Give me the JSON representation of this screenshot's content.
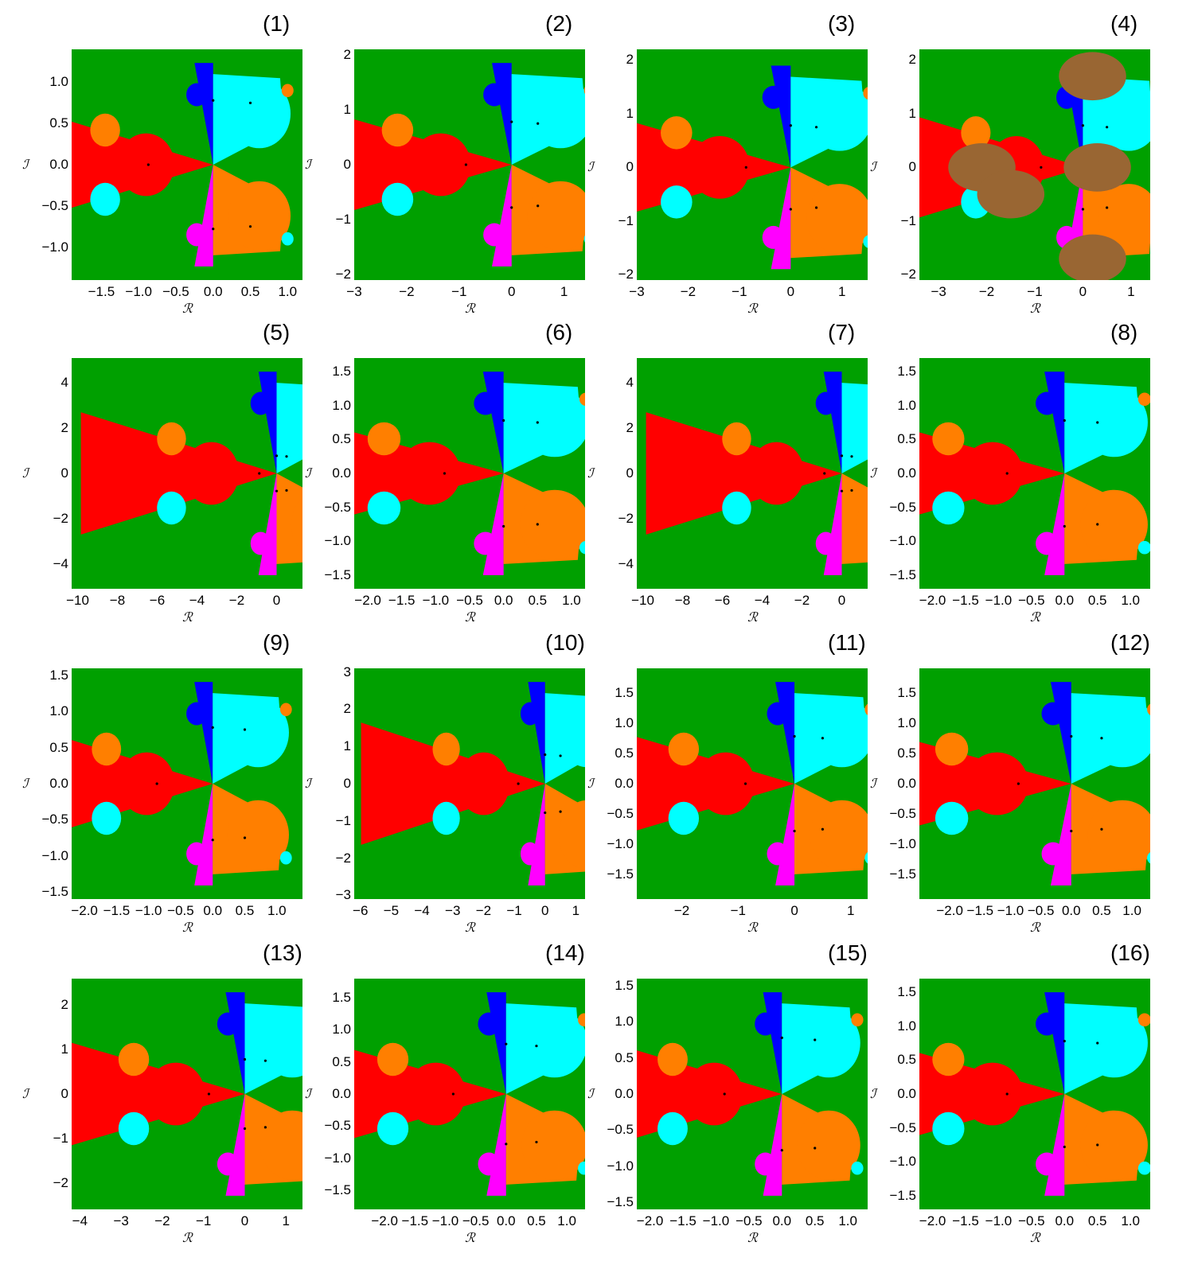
{
  "colors": {
    "background": "#00a000",
    "red": "#ff0000",
    "orange": "#ff7f00",
    "cyan": "#00ffff",
    "blue": "#0000ff",
    "magenta": "#ff00ff",
    "brown": "#996633",
    "root": "#000000"
  },
  "axis_labels": {
    "x": "ℛ",
    "y": "ℐ"
  },
  "roots": [
    [
      -0.87,
      0.0
    ],
    [
      0.0,
      0.78
    ],
    [
      0.0,
      -0.78
    ],
    [
      0.5,
      0.75
    ],
    [
      0.5,
      -0.75
    ]
  ],
  "panels": [
    {
      "title": "(1)",
      "xlim": [
        -1.9,
        1.2
      ],
      "ylim": [
        -1.4,
        1.4
      ],
      "xticks": [
        "−1.5",
        "−1.0",
        "−0.5",
        "0.0",
        "0.5",
        "1.0"
      ],
      "xtick_values": [
        -1.5,
        -1.0,
        -0.5,
        0.0,
        0.5,
        1.0
      ],
      "yticks": [
        "1.0",
        "0.5",
        "0.0",
        "−0.5",
        "−1.0"
      ],
      "ytick_values": [
        1.0,
        0.5,
        0.0,
        -0.5,
        -1.0
      ]
    },
    {
      "title": "(2)",
      "xlim": [
        -3.0,
        1.4
      ],
      "ylim": [
        -2.1,
        2.1
      ],
      "xticks": [
        "−3",
        "−2",
        "−1",
        "0",
        "1"
      ],
      "xtick_values": [
        -3,
        -2,
        -1,
        0,
        1
      ],
      "yticks": [
        "2",
        "1",
        "0",
        "−1",
        "−2"
      ],
      "ytick_values": [
        2,
        1,
        0,
        -1,
        -2
      ]
    },
    {
      "title": "(3)",
      "xlim": [
        -3.0,
        1.5
      ],
      "ylim": [
        -2.1,
        2.2
      ],
      "xticks": [
        "−3",
        "−2",
        "−1",
        "0",
        "1"
      ],
      "xtick_values": [
        -3,
        -2,
        -1,
        0,
        1
      ],
      "yticks": [
        "2",
        "1",
        "0",
        "−1",
        "−2"
      ],
      "ytick_values": [
        2,
        1,
        0,
        -1,
        -2
      ]
    },
    {
      "title": "(4)",
      "xlim": [
        -3.4,
        1.4
      ],
      "ylim": [
        -2.1,
        2.2
      ],
      "xticks": [
        "−3",
        "−2",
        "−1",
        "0",
        "1"
      ],
      "xtick_values": [
        -3,
        -2,
        -1,
        0,
        1
      ],
      "yticks": [
        "2",
        "1",
        "0",
        "−1",
        "−2"
      ],
      "ytick_values": [
        2,
        1,
        0,
        -1,
        -2
      ]
    },
    {
      "title": "(5)",
      "xlim": [
        -10.3,
        1.3
      ],
      "ylim": [
        -5.1,
        5.1
      ],
      "xticks": [
        "−10",
        "−8",
        "−6",
        "−4",
        "−2",
        "0"
      ],
      "xtick_values": [
        -10,
        -8,
        -6,
        -4,
        -2,
        0
      ],
      "yticks": [
        "4",
        "2",
        "0",
        "−2",
        "−4"
      ],
      "ytick_values": [
        4,
        2,
        0,
        -2,
        -4
      ]
    },
    {
      "title": "(6)",
      "xlim": [
        -2.2,
        1.2
      ],
      "ylim": [
        -1.7,
        1.7
      ],
      "xticks": [
        "−2.0",
        "−1.5",
        "−1.0",
        "−0.5",
        "0.0",
        "0.5",
        "1.0"
      ],
      "xtick_values": [
        -2.0,
        -1.5,
        -1.0,
        -0.5,
        0.0,
        0.5,
        1.0
      ],
      "yticks": [
        "1.5",
        "1.0",
        "0.5",
        "0.0",
        "−0.5",
        "−1.0",
        "−1.5"
      ],
      "ytick_values": [
        1.5,
        1.0,
        0.5,
        0.0,
        -0.5,
        -1.0,
        -1.5
      ]
    },
    {
      "title": "(7)",
      "xlim": [
        -10.3,
        1.3
      ],
      "ylim": [
        -5.1,
        5.1
      ],
      "xticks": [
        "−10",
        "−8",
        "−6",
        "−4",
        "−2",
        "0"
      ],
      "xtick_values": [
        -10,
        -8,
        -6,
        -4,
        -2,
        0
      ],
      "yticks": [
        "4",
        "2",
        "0",
        "−2",
        "−4"
      ],
      "ytick_values": [
        4,
        2,
        0,
        -2,
        -4
      ]
    },
    {
      "title": "(8)",
      "xlim": [
        -2.2,
        1.3
      ],
      "ylim": [
        -1.7,
        1.7
      ],
      "xticks": [
        "−2.0",
        "−1.5",
        "−1.0",
        "−0.5",
        "0.0",
        "0.5",
        "1.0"
      ],
      "xtick_values": [
        -2.0,
        -1.5,
        -1.0,
        -0.5,
        0.0,
        0.5,
        1.0
      ],
      "yticks": [
        "1.5",
        "1.0",
        "0.5",
        "0.0",
        "−0.5",
        "−1.0",
        "−1.5"
      ],
      "ytick_values": [
        1.5,
        1.0,
        0.5,
        0.0,
        -0.5,
        -1.0,
        -1.5
      ]
    },
    {
      "title": "(9)",
      "xlim": [
        -2.2,
        1.4
      ],
      "ylim": [
        -1.6,
        1.6
      ],
      "xticks": [
        "−2.0",
        "−1.5",
        "−1.0",
        "−0.5",
        "0.0",
        "0.5",
        "1.0"
      ],
      "xtick_values": [
        -2.0,
        -1.5,
        -1.0,
        -0.5,
        0.0,
        0.5,
        1.0
      ],
      "yticks": [
        "1.5",
        "1.0",
        "0.5",
        "0.0",
        "−0.5",
        "−1.0",
        "−1.5"
      ],
      "ytick_values": [
        1.5,
        1.0,
        0.5,
        0.0,
        -0.5,
        -1.0,
        -1.5
      ]
    },
    {
      "title": "(10)",
      "xlim": [
        -6.2,
        1.3
      ],
      "ylim": [
        -3.1,
        3.1
      ],
      "xticks": [
        "−6",
        "−5",
        "−4",
        "−3",
        "−2",
        "−1",
        "0",
        "1"
      ],
      "xtick_values": [
        -6,
        -5,
        -4,
        -3,
        -2,
        -1,
        0,
        1
      ],
      "yticks": [
        "3",
        "2",
        "1",
        "0",
        "−1",
        "−2",
        "−3"
      ],
      "ytick_values": [
        3,
        2,
        1,
        0,
        -1,
        -2,
        -3
      ]
    },
    {
      "title": "(11)",
      "xlim": [
        -2.8,
        1.3
      ],
      "ylim": [
        -1.9,
        1.9
      ],
      "xticks": [
        "−2",
        "−1",
        "0",
        "1"
      ],
      "xtick_values": [
        -2,
        -1,
        0,
        1
      ],
      "yticks": [
        "1.5",
        "1.0",
        "0.5",
        "0.0",
        "−0.5",
        "−1.0",
        "−1.5"
      ],
      "ytick_values": [
        1.5,
        1.0,
        0.5,
        0.0,
        -0.5,
        -1.0,
        -1.5
      ]
    },
    {
      "title": "(12)",
      "xlim": [
        -2.5,
        1.3
      ],
      "ylim": [
        -1.9,
        1.9
      ],
      "xticks": [
        "−2.0",
        "−1.5",
        "−1.0",
        "−0.5",
        "0.0",
        "0.5",
        "1.0"
      ],
      "xtick_values": [
        -2.0,
        -1.5,
        -1.0,
        -0.5,
        0.0,
        0.5,
        1.0
      ],
      "yticks": [
        "1.5",
        "1.0",
        "0.5",
        "0.0",
        "−0.5",
        "−1.0",
        "−1.5"
      ],
      "ytick_values": [
        1.5,
        1.0,
        0.5,
        0.0,
        -0.5,
        -1.0,
        -1.5
      ]
    },
    {
      "title": "(13)",
      "xlim": [
        -4.2,
        1.4
      ],
      "ylim": [
        -2.6,
        2.6
      ],
      "xticks": [
        "−4",
        "−3",
        "−2",
        "−1",
        "0",
        "1"
      ],
      "xtick_values": [
        -4,
        -3,
        -2,
        -1,
        0,
        1
      ],
      "yticks": [
        "2",
        "1",
        "0",
        "−1",
        "−2"
      ],
      "ytick_values": [
        2,
        1,
        0,
        -1,
        -2
      ]
    },
    {
      "title": "(14)",
      "xlim": [
        -2.5,
        1.3
      ],
      "ylim": [
        -1.8,
        1.8
      ],
      "xticks": [
        "−2.0",
        "−1.5",
        "−1.0",
        "−0.5",
        "0.0",
        "0.5",
        "1.0"
      ],
      "xtick_values": [
        -2.0,
        -1.5,
        -1.0,
        -0.5,
        0.0,
        0.5,
        1.0
      ],
      "yticks": [
        "1.5",
        "1.0",
        "0.5",
        "0.0",
        "−0.5",
        "−1.0",
        "−1.5"
      ],
      "ytick_values": [
        1.5,
        1.0,
        0.5,
        0.0,
        -0.5,
        -1.0,
        -1.5
      ]
    },
    {
      "title": "(15)",
      "xlim": [
        -2.2,
        1.3
      ],
      "ylim": [
        -1.6,
        1.6
      ],
      "xticks": [
        "−2.0",
        "−1.5",
        "−1.0",
        "−0.5",
        "0.0",
        "0.5",
        "1.0"
      ],
      "xtick_values": [
        -2.0,
        -1.5,
        -1.0,
        -0.5,
        0.0,
        0.5,
        1.0
      ],
      "yticks": [
        "1.5",
        "1.0",
        "0.5",
        "0.0",
        "−0.5",
        "−1.0",
        "−1.5"
      ],
      "ytick_values": [
        1.5,
        1.0,
        0.5,
        0.0,
        -0.5,
        -1.0,
        -1.5
      ]
    },
    {
      "title": "(16)",
      "xlim": [
        -2.2,
        1.3
      ],
      "ylim": [
        -1.7,
        1.7
      ],
      "xticks": [
        "−2.0",
        "−1.5",
        "−1.0",
        "−0.5",
        "0.0",
        "0.5",
        "1.0"
      ],
      "xtick_values": [
        -2.0,
        -1.5,
        -1.0,
        -0.5,
        0.0,
        0.5,
        1.0
      ],
      "yticks": [
        "1.5",
        "1.0",
        "0.5",
        "0.0",
        "−0.5",
        "−1.0",
        "−1.5"
      ],
      "ytick_values": [
        1.5,
        1.0,
        0.5,
        0.0,
        -0.5,
        -1.0,
        -1.5
      ]
    }
  ]
}
